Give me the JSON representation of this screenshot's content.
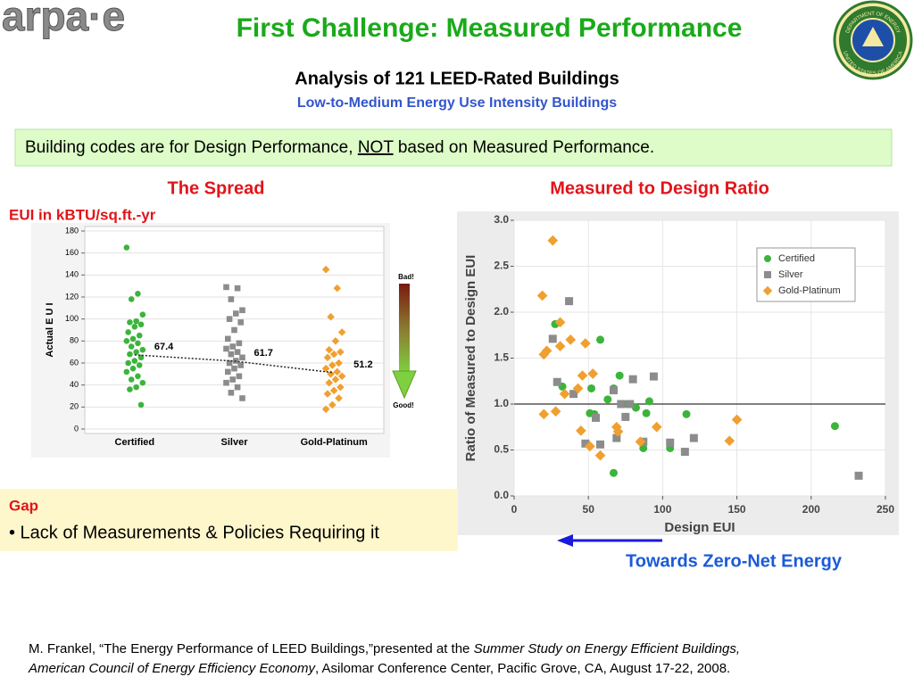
{
  "header": {
    "logo": "arpa·e",
    "title": "First Challenge: Measured Performance",
    "subtitle": "Analysis of 121 LEED-Rated Buildings",
    "tagline": "Low-to-Medium Energy Use Intensity Buildings"
  },
  "seal": {
    "top": "DEPARTMENT OF ENERGY",
    "bottom": "UNITED STATES OF AMERICA"
  },
  "callout": [
    "Building codes are for Design Performance, ",
    "NOT",
    " based on Measured Performance."
  ],
  "panels": {
    "left": "The Spread",
    "right": "Measured to Design Ratio"
  },
  "gap": {
    "title": "Gap",
    "bullet": "• Lack of Measurements & Policies Requiring it"
  },
  "arrow_label": "Towards Zero-Net Energy",
  "citation": [
    [
      "M. Frankel, “The Energy Performance of LEED Buildings,”presented at the ",
      "Summer Study on Energy Efficient Buildings,"
    ],
    [
      "American Council of Energy Efficiency Economy",
      ", Asilomar Conference Center, Pacific Grove, CA, August 17-22, 2008."
    ]
  ],
  "chart_data": [
    {
      "type": "strip",
      "title": "EUI in kBTU/sq.ft.-yr",
      "ylabel": "Actual  E U I",
      "categories": [
        "Certified",
        "Silver",
        "Gold-Platinum"
      ],
      "series": [
        {
          "color": "#3cb43c",
          "marker": "circle",
          "values": [
            165,
            123,
            118,
            104,
            98,
            97,
            95,
            93,
            88,
            85,
            82,
            80,
            78,
            75,
            72,
            70,
            68,
            65,
            62,
            60,
            58,
            55,
            52,
            48,
            45,
            42,
            38,
            36,
            22
          ]
        },
        {
          "color": "#8c8c8c",
          "marker": "square",
          "values": [
            129,
            128,
            118,
            108,
            105,
            100,
            97,
            90,
            82,
            78,
            75,
            73,
            70,
            68,
            65,
            62,
            60,
            58,
            55,
            52,
            48,
            45,
            42,
            38,
            33,
            28
          ]
        },
        {
          "color": "#f0a030",
          "marker": "diamond",
          "values": [
            145,
            128,
            102,
            88,
            80,
            72,
            70,
            68,
            65,
            60,
            58,
            55,
            52,
            50,
            48,
            45,
            42,
            38,
            35,
            32,
            28,
            22,
            18
          ]
        }
      ],
      "means": [
        67.4,
        61.7,
        51.2
      ],
      "ylim": [
        0,
        180
      ],
      "yticks": [
        0,
        20,
        40,
        60,
        80,
        100,
        120,
        140,
        160,
        180
      ],
      "grid": true,
      "scale_labels": [
        "Bad!",
        "Good!"
      ]
    },
    {
      "type": "scatter",
      "xlabel": "Design EUI",
      "ylabel": "Ratio of Measured to Design EUI",
      "series": [
        {
          "name": "Certified",
          "color": "#3cb43c",
          "marker": "circle",
          "x": [
            27.6,
            32.5,
            51,
            52,
            58,
            54,
            63,
            67,
            71,
            67,
            76,
            82,
            89,
            91,
            87,
            105,
            116,
            216
          ],
          "values": [
            1.87,
            1.19,
            0.9,
            1.17,
            1.7,
            0.89,
            1.05,
            0.25,
            1.31,
            1.17,
            1.0,
            0.96,
            0.9,
            1.03,
            0.52,
            0.52,
            0.89,
            0.76
          ]
        },
        {
          "name": "Silver",
          "color": "#8c8c8c",
          "marker": "square",
          "x": [
            26,
            37,
            29,
            40,
            48,
            55,
            58,
            67,
            69,
            72,
            75,
            78,
            80,
            87,
            94,
            105,
            115,
            121,
            232
          ],
          "values": [
            1.71,
            2.12,
            1.24,
            1.11,
            0.57,
            0.85,
            0.56,
            1.15,
            0.63,
            1.0,
            0.86,
            1.0,
            1.27,
            0.59,
            1.3,
            0.58,
            0.48,
            0.63,
            0.22
          ]
        },
        {
          "name": "Gold-Platinum",
          "color": "#f0a030",
          "marker": "diamond",
          "x": [
            26,
            19,
            31,
            20,
            22,
            31,
            38,
            34,
            43,
            46,
            48,
            53,
            20,
            28,
            45,
            51,
            58,
            69,
            70,
            85,
            96,
            145,
            150
          ],
          "values": [
            2.78,
            2.18,
            1.89,
            1.54,
            1.58,
            1.63,
            1.7,
            1.11,
            1.17,
            1.31,
            1.66,
            1.33,
            0.89,
            0.92,
            0.71,
            0.54,
            0.44,
            0.75,
            0.7,
            0.59,
            0.75,
            0.6,
            0.83
          ]
        }
      ],
      "hline": 1.0,
      "xlim": [
        0,
        250
      ],
      "xticks": [
        0,
        50,
        100,
        150,
        200,
        250
      ],
      "ylim": [
        0,
        3.0
      ],
      "yticks": [
        {
          "value": 0,
          "label": "0.0"
        },
        {
          "value": 0.5,
          "label": "0.5"
        },
        {
          "value": 1.0,
          "label": "1.0"
        },
        {
          "value": 1.5,
          "label": "1.5"
        },
        {
          "value": 2.0,
          "label": "2.0"
        },
        {
          "value": 2.5,
          "label": "2.5"
        },
        {
          "value": 3.0,
          "label": "3.0"
        }
      ],
      "grid": true,
      "legend": "upper right"
    }
  ]
}
